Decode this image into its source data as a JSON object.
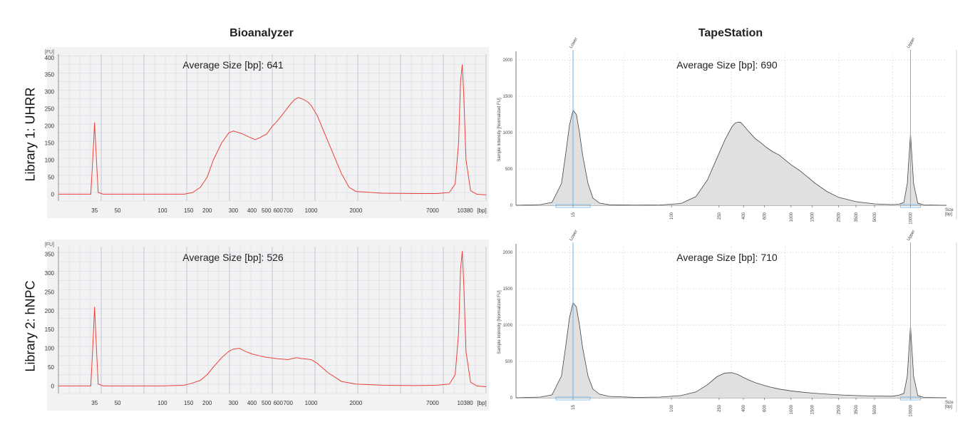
{
  "columns": {
    "left": "Bioanalyzer",
    "right": "TapeStation"
  },
  "rows": [
    {
      "label": "Library 1: UHRR"
    },
    {
      "label": "Library 2: hNPC"
    }
  ],
  "chart_data": [
    {
      "type": "line",
      "title": "Bioanalyzer",
      "row": "Library 1: UHRR",
      "annotation": "Average Size [bp]: 641",
      "y_unit_label": "[FU]",
      "x_unit_label": "[bp]",
      "x_ticks": [
        "35",
        "50",
        "100",
        "150",
        "200",
        "300",
        "400",
        "500",
        "600",
        "700",
        "1000",
        "2000",
        "7000",
        "10380"
      ],
      "y_ticks": [
        0,
        50,
        100,
        150,
        200,
        250,
        300,
        350,
        400
      ],
      "ylim": [
        -20,
        410
      ],
      "x_scale": "log",
      "color": "#e8433b",
      "grid": true,
      "x": [
        20,
        33,
        34,
        35,
        36,
        37,
        40,
        60,
        100,
        140,
        160,
        180,
        200,
        220,
        250,
        280,
        300,
        340,
        380,
        420,
        450,
        480,
        500,
        520,
        550,
        580,
        620,
        660,
        700,
        740,
        780,
        820,
        860,
        900,
        950,
        1000,
        1100,
        1200,
        1400,
        1600,
        1800,
        2000,
        3000,
        5000,
        7000,
        8500,
        9300,
        9800,
        10100,
        10380,
        10600,
        11000,
        11800,
        13000,
        15000
      ],
      "y": [
        0,
        0,
        100,
        210,
        100,
        5,
        0,
        0,
        0,
        0,
        5,
        20,
        50,
        100,
        150,
        180,
        185,
        178,
        168,
        160,
        165,
        172,
        175,
        185,
        200,
        210,
        225,
        240,
        255,
        268,
        278,
        283,
        280,
        276,
        270,
        260,
        230,
        190,
        120,
        60,
        20,
        8,
        3,
        2,
        2,
        5,
        30,
        150,
        330,
        380,
        300,
        100,
        10,
        0,
        -2
      ]
    },
    {
      "type": "area",
      "title": "TapeStation",
      "row": "Library 1: UHRR",
      "annotation": "Average Size [bp]: 690",
      "ylabel": "Sample Intensity [Normalized FU]",
      "xlabel": "Size [bp]",
      "x_ticks": [
        "15",
        "100",
        "250",
        "400",
        "600",
        "1000",
        "1500",
        "2500",
        "3500",
        "5000",
        "10000"
      ],
      "y_ticks": [
        0,
        500,
        1000,
        1500,
        2000
      ],
      "ylim": [
        0,
        2080
      ],
      "markers": [
        "Lower",
        "Upper"
      ],
      "x_scale": "log",
      "color": "#444444",
      "fill": "#e0e0e0",
      "grid": true,
      "x": [
        5,
        8,
        10,
        12,
        13,
        14,
        15,
        16,
        17,
        18,
        20,
        22,
        25,
        30,
        50,
        80,
        120,
        160,
        200,
        240,
        280,
        320,
        340,
        360,
        380,
        400,
        440,
        500,
        560,
        620,
        700,
        800,
        900,
        1000,
        1200,
        1400,
        1600,
        2000,
        2500,
        3500,
        5000,
        7000,
        8000,
        8800,
        9400,
        10000,
        10600,
        11500,
        13000,
        20000
      ],
      "y": [
        0,
        10,
        40,
        300,
        700,
        1100,
        1310,
        1250,
        1000,
        700,
        300,
        100,
        30,
        8,
        2,
        5,
        25,
        120,
        350,
        650,
        900,
        1080,
        1130,
        1145,
        1140,
        1100,
        1020,
        920,
        860,
        800,
        740,
        690,
        620,
        560,
        470,
        380,
        300,
        190,
        110,
        50,
        20,
        10,
        15,
        40,
        300,
        990,
        300,
        30,
        5,
        0
      ]
    },
    {
      "type": "line",
      "title": "Bioanalyzer",
      "row": "Library 2: hNPC",
      "annotation": "Average Size [bp]: 526",
      "y_unit_label": "[FU]",
      "x_unit_label": "[bp]",
      "x_ticks": [
        "35",
        "50",
        "100",
        "150",
        "200",
        "300",
        "400",
        "500",
        "600",
        "700",
        "1000",
        "2000",
        "7000",
        "10380"
      ],
      "y_ticks": [
        0,
        50,
        100,
        150,
        200,
        250,
        300,
        350
      ],
      "ylim": [
        -20,
        370
      ],
      "x_scale": "log",
      "color": "#e8433b",
      "grid": true,
      "x": [
        20,
        33,
        34,
        35,
        36,
        37,
        40,
        60,
        100,
        140,
        150,
        160,
        180,
        200,
        220,
        250,
        280,
        300,
        330,
        360,
        400,
        450,
        500,
        550,
        600,
        650,
        700,
        750,
        800,
        850,
        900,
        950,
        1000,
        1100,
        1300,
        1600,
        2000,
        3000,
        5000,
        7000,
        8500,
        9300,
        9800,
        10100,
        10380,
        10600,
        11000,
        11800,
        13000,
        15000
      ],
      "y": [
        0,
        0,
        100,
        210,
        100,
        5,
        0,
        0,
        0,
        2,
        5,
        8,
        15,
        30,
        50,
        75,
        92,
        98,
        100,
        92,
        85,
        80,
        76,
        74,
        72,
        71,
        70,
        73,
        75,
        73,
        72,
        71,
        70,
        60,
        35,
        12,
        5,
        2,
        1,
        2,
        5,
        30,
        140,
        310,
        358,
        280,
        90,
        10,
        0,
        -2
      ]
    },
    {
      "type": "area",
      "title": "TapeStation",
      "row": "Library 2: hNPC",
      "annotation": "Average Size [bp]: 710",
      "ylabel": "Sample Intensity [Normalized FU]",
      "xlabel": "Size [bp]",
      "x_ticks": [
        "15",
        "100",
        "250",
        "400",
        "600",
        "1000",
        "1500",
        "2500",
        "3500",
        "5000",
        "10000"
      ],
      "y_ticks": [
        0,
        500,
        1000,
        1500,
        2000
      ],
      "ylim": [
        0,
        2080
      ],
      "markers": [
        "Lower",
        "Upper"
      ],
      "x_scale": "log",
      "color": "#444444",
      "fill": "#e0e0e0",
      "grid": true,
      "x": [
        5,
        8,
        10,
        12,
        13,
        14,
        15,
        16,
        17,
        18,
        20,
        22,
        25,
        30,
        50,
        80,
        120,
        160,
        200,
        240,
        280,
        320,
        360,
        400,
        450,
        500,
        600,
        700,
        800,
        1000,
        1200,
        1500,
        2000,
        2500,
        3500,
        5000,
        7000,
        8000,
        8800,
        9400,
        10000,
        10600,
        11500,
        13000,
        20000
      ],
      "y": [
        0,
        10,
        40,
        300,
        700,
        1100,
        1310,
        1250,
        1000,
        700,
        300,
        120,
        50,
        20,
        5,
        10,
        30,
        80,
        180,
        290,
        340,
        345,
        320,
        280,
        240,
        210,
        170,
        140,
        120,
        95,
        80,
        65,
        50,
        40,
        30,
        25,
        22,
        35,
        60,
        300,
        995,
        300,
        30,
        5,
        0
      ]
    }
  ]
}
